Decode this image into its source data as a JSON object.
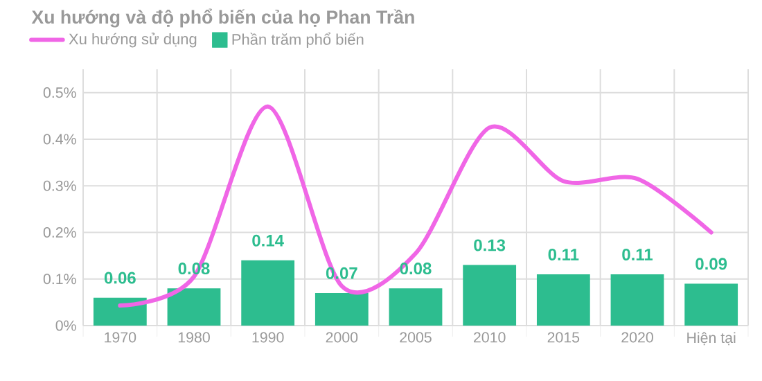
{
  "chart_data": {
    "type": "bar",
    "title": "Xu hướng và độ phổ biến của họ Phan Trần",
    "categories": [
      "1970",
      "1980",
      "1990",
      "2000",
      "2005",
      "2010",
      "2015",
      "2020",
      "Hiện tại"
    ],
    "series": [
      {
        "name": "Xu hướng sử dụng",
        "type": "line",
        "color": "#f066e6",
        "values": [
          0.043,
          0.105,
          0.47,
          0.085,
          0.155,
          0.425,
          0.31,
          0.315,
          0.2
        ]
      },
      {
        "name": "Phần trăm phổ biến",
        "color": "#2dbd8f",
        "data_labels": true,
        "values": [
          0.06,
          0.08,
          0.14,
          0.07,
          0.08,
          0.13,
          0.11,
          0.11,
          0.09
        ]
      }
    ],
    "ylim": [
      0,
      0.55
    ],
    "yticks": [
      {
        "value": 0,
        "label": "0%"
      },
      {
        "value": 0.1,
        "label": "0.1%"
      },
      {
        "value": 0.2,
        "label": "0.2%"
      },
      {
        "value": 0.3,
        "label": "0.3%"
      },
      {
        "value": 0.4,
        "label": "0.4%"
      },
      {
        "value": 0.5,
        "label": "0.5%"
      }
    ],
    "grid": true,
    "legend": "top left"
  }
}
